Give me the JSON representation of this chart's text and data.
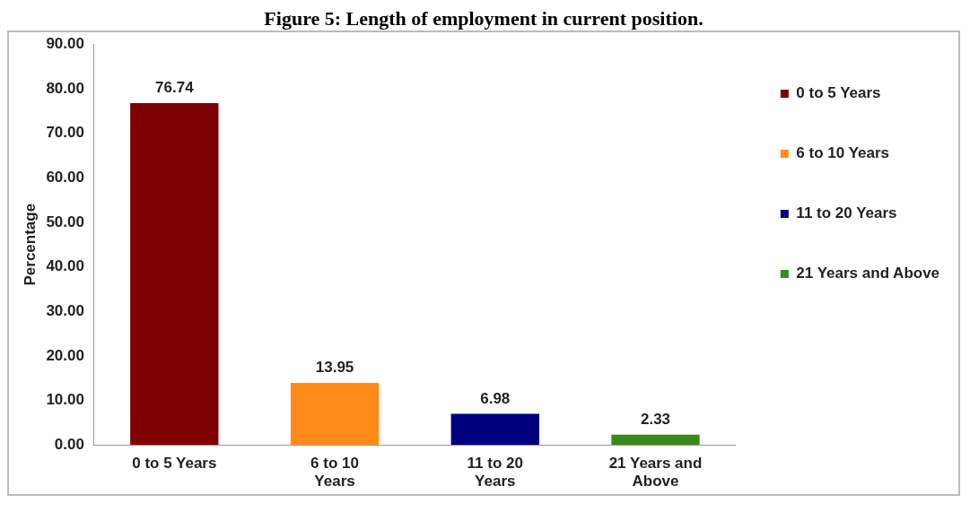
{
  "chart_data": {
    "type": "bar",
    "title": "Figure 5: Length of employment in current position.",
    "ylabel": "Percentage",
    "categories": [
      "0 to 5 Years",
      "6 to 10 Years",
      "11 to 20 Years",
      "21 Years and Above"
    ],
    "series": [
      {
        "name": "0 to 5 Years",
        "color": "#7f0000",
        "values": [
          76.74,
          null,
          null,
          null
        ]
      },
      {
        "name": "6 to 10 Years",
        "color": "#ff8c1a",
        "values": [
          null,
          13.95,
          null,
          null
        ]
      },
      {
        "name": "11 to 20 Years",
        "color": "#00007f",
        "values": [
          null,
          null,
          6.98,
          null
        ]
      },
      {
        "name": "21 Years and Above",
        "color": "#3a8a1a",
        "values": [
          null,
          null,
          null,
          2.33
        ]
      }
    ],
    "ylim": [
      0,
      90
    ],
    "yticks": [
      {
        "value": 0,
        "label": "0.00"
      },
      {
        "value": 10,
        "label": "10.00"
      },
      {
        "value": 20,
        "label": "20.00"
      },
      {
        "value": 30,
        "label": "30.00"
      },
      {
        "value": 40,
        "label": "40.00"
      },
      {
        "value": 50,
        "label": "50.00"
      },
      {
        "value": 60,
        "label": "60.00"
      },
      {
        "value": 70,
        "label": "70.00"
      },
      {
        "value": 80,
        "label": "80.00"
      },
      {
        "value": 90,
        "label": "90.00"
      }
    ],
    "grid": false,
    "legend": "right",
    "data_labels": true
  }
}
